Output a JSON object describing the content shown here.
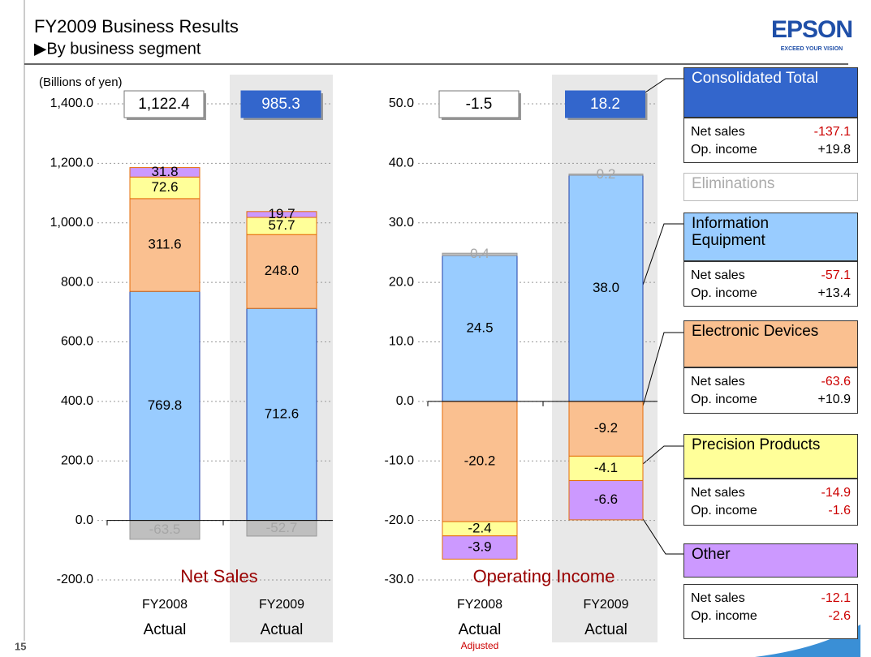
{
  "header": {
    "title": "FY2009 Business Results",
    "subtitle": "▶By business segment",
    "logo": "EPSON",
    "logo_tagline": "EXCEED YOUR VISION",
    "page_number": "15"
  },
  "summary_labels": {
    "net_sales": "Net sales",
    "op_income": "Op. income"
  },
  "consolidated": {
    "name": "Consolidated Total",
    "color": "#3366cc",
    "net_sales": "-137.1",
    "op_income": "+19.8"
  },
  "segment_changes": [
    {
      "net_sales": "-57.1",
      "op_income": "+13.4"
    },
    {
      "net_sales": "-63.6",
      "op_income": "+10.9"
    },
    {
      "net_sales": "-14.9",
      "op_income": "-1.6"
    },
    {
      "net_sales": "-12.1",
      "op_income": "-2.6"
    }
  ],
  "chart_data": [
    {
      "type": "stacked_bar",
      "title": "Net Sales",
      "ylabel": "(Billions of yen)",
      "categories": [
        [
          "FY2008",
          "Actual"
        ],
        [
          "FY2009",
          "Actual"
        ]
      ],
      "series": [
        {
          "name": "Information Equipment",
          "color": "#99ccff",
          "values": [
            769.8,
            712.6
          ],
          "value_labels": [
            "769.8",
            "712.6"
          ]
        },
        {
          "name": "Electronic Devices",
          "color": "#fac090",
          "values": [
            311.6,
            248.0
          ],
          "value_labels": [
            "311.6",
            "248.0"
          ]
        },
        {
          "name": "Precision Products",
          "color": "#ffff99",
          "values": [
            72.6,
            57.7
          ],
          "value_labels": [
            "72.6",
            "57.7"
          ]
        },
        {
          "name": "Other",
          "color": "#cc99ff",
          "values": [
            31.8,
            19.7
          ],
          "value_labels": [
            "31.8",
            "19.7"
          ]
        },
        {
          "name": "Eliminations",
          "color": "#bfbfbf",
          "label_color": "#a6a6a6",
          "values": [
            -63.5,
            -52.7
          ],
          "value_labels": [
            "-63.5",
            "-52.7"
          ]
        }
      ],
      "totals": [
        1122.4,
        985.3
      ],
      "total_labels": [
        "1,122.4",
        "985.3"
      ],
      "total_colors": [
        "#ffffff",
        "#3366cc"
      ],
      "ylim": [
        -200,
        1400
      ],
      "yticks": [
        {
          "value": -200,
          "label": "-200.0"
        },
        {
          "value": 0,
          "label": "0.0"
        },
        {
          "value": 200,
          "label": "200.0"
        },
        {
          "value": 400,
          "label": "400.0"
        },
        {
          "value": 600,
          "label": "600.0"
        },
        {
          "value": 800,
          "label": "800.0"
        },
        {
          "value": 1000,
          "label": "1,000.0"
        },
        {
          "value": 1200,
          "label": "1,200.0"
        },
        {
          "value": 1400,
          "label": "1,400.0"
        }
      ],
      "grid": true
    },
    {
      "type": "stacked_bar",
      "title": "Operating Income",
      "annotation": "Adjusted",
      "categories": [
        [
          "FY2008",
          "Actual"
        ],
        [
          "FY2009",
          "Actual"
        ]
      ],
      "series": [
        {
          "name": "Information Equipment",
          "color": "#99ccff",
          "values": [
            24.5,
            38.0
          ],
          "value_labels": [
            "24.5",
            "38.0"
          ]
        },
        {
          "name": "Electronic Devices",
          "color": "#fac090",
          "values": [
            -20.2,
            -9.2
          ],
          "value_labels": [
            "-20.2",
            "-9.2"
          ]
        },
        {
          "name": "Precision Products",
          "color": "#ffff99",
          "values": [
            -2.4,
            -4.1
          ],
          "value_labels": [
            "-2.4",
            "-4.1"
          ]
        },
        {
          "name": "Other",
          "color": "#cc99ff",
          "values": [
            -3.9,
            -6.6
          ],
          "value_labels": [
            "-3.9",
            "-6.6"
          ]
        },
        {
          "name": "Eliminations",
          "color": "#bfbfbf",
          "label_color": "#a6a6a6",
          "values": [
            0.4,
            0.2
          ],
          "value_labels": [
            "0.4",
            "0.2"
          ]
        }
      ],
      "totals": [
        -1.5,
        18.2
      ],
      "total_labels": [
        "-1.5",
        "18.2"
      ],
      "total_colors": [
        "#ffffff",
        "#3366cc"
      ],
      "ylim": [
        -30,
        50
      ],
      "yticks": [
        {
          "value": -30,
          "label": "-30.0"
        },
        {
          "value": -20,
          "label": "-20.0"
        },
        {
          "value": -10,
          "label": "-10.0"
        },
        {
          "value": 0,
          "label": "0.0"
        },
        {
          "value": 10,
          "label": "10.0"
        },
        {
          "value": 20,
          "label": "20.0"
        },
        {
          "value": 30,
          "label": "30.0"
        },
        {
          "value": 40,
          "label": "40.0"
        },
        {
          "value": 50,
          "label": "50.0"
        }
      ],
      "grid": true
    }
  ]
}
